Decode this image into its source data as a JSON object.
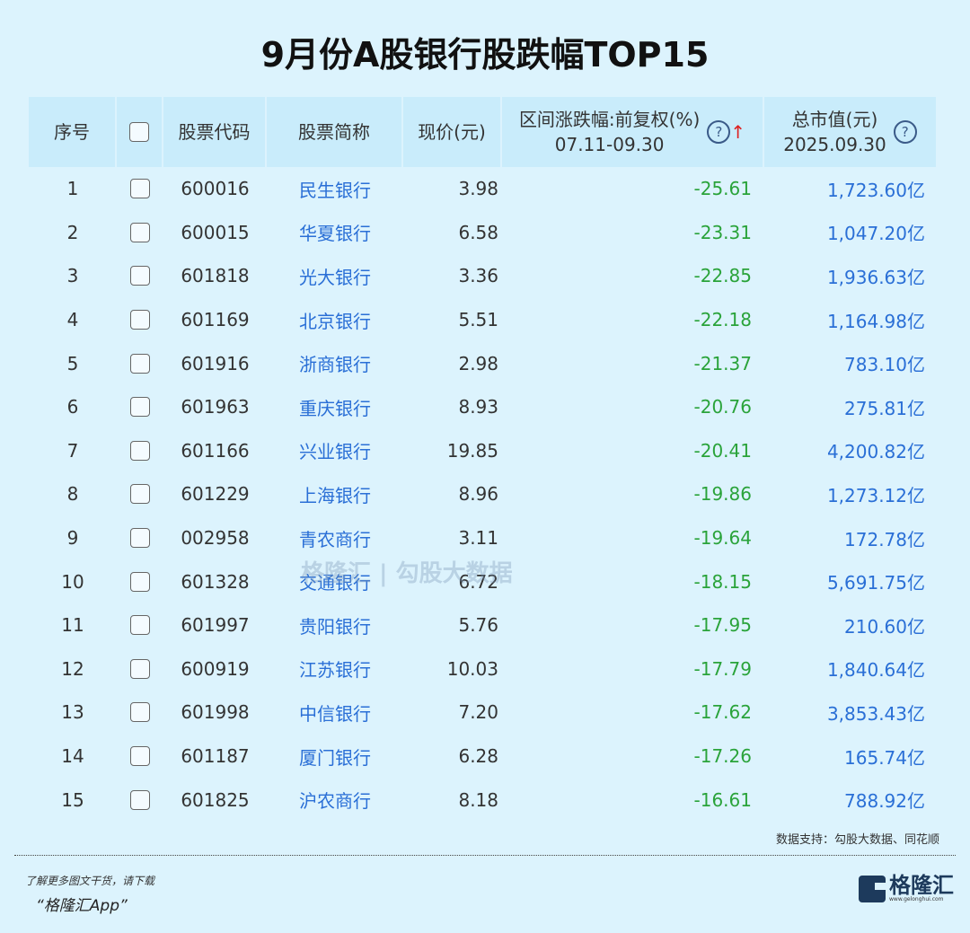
{
  "title": "9月份A股银行股跌幅TOP15",
  "headers": {
    "index": "序号",
    "code": "股票代码",
    "name": "股票简称",
    "price": "现价(元)",
    "change": "区间涨跌幅:前复权(%)",
    "change_period": "07.11-09.30",
    "cap": "总市值(元)",
    "cap_date": "2025.09.30",
    "help_icon": "?",
    "sort_icon": "↑"
  },
  "rows": [
    {
      "index": "1",
      "code": "600016",
      "name": "民生银行",
      "price": "3.98",
      "change": "-25.61",
      "cap": "1,723.60亿"
    },
    {
      "index": "2",
      "code": "600015",
      "name": "华夏银行",
      "price": "6.58",
      "change": "-23.31",
      "cap": "1,047.20亿"
    },
    {
      "index": "3",
      "code": "601818",
      "name": "光大银行",
      "price": "3.36",
      "change": "-22.85",
      "cap": "1,936.63亿"
    },
    {
      "index": "4",
      "code": "601169",
      "name": "北京银行",
      "price": "5.51",
      "change": "-22.18",
      "cap": "1,164.98亿"
    },
    {
      "index": "5",
      "code": "601916",
      "name": "浙商银行",
      "price": "2.98",
      "change": "-21.37",
      "cap": "783.10亿"
    },
    {
      "index": "6",
      "code": "601963",
      "name": "重庆银行",
      "price": "8.93",
      "change": "-20.76",
      "cap": "275.81亿"
    },
    {
      "index": "7",
      "code": "601166",
      "name": "兴业银行",
      "price": "19.85",
      "change": "-20.41",
      "cap": "4,200.82亿"
    },
    {
      "index": "8",
      "code": "601229",
      "name": "上海银行",
      "price": "8.96",
      "change": "-19.86",
      "cap": "1,273.12亿"
    },
    {
      "index": "9",
      "code": "002958",
      "name": "青农商行",
      "price": "3.11",
      "change": "-19.64",
      "cap": "172.78亿"
    },
    {
      "index": "10",
      "code": "601328",
      "name": "交通银行",
      "price": "6.72",
      "change": "-18.15",
      "cap": "5,691.75亿"
    },
    {
      "index": "11",
      "code": "601997",
      "name": "贵阳银行",
      "price": "5.76",
      "change": "-17.95",
      "cap": "210.60亿"
    },
    {
      "index": "12",
      "code": "600919",
      "name": "江苏银行",
      "price": "10.03",
      "change": "-17.79",
      "cap": "1,840.64亿"
    },
    {
      "index": "13",
      "code": "601998",
      "name": "中信银行",
      "price": "7.20",
      "change": "-17.62",
      "cap": "3,853.43亿"
    },
    {
      "index": "14",
      "code": "601187",
      "name": "厦门银行",
      "price": "6.28",
      "change": "-17.26",
      "cap": "165.74亿"
    },
    {
      "index": "15",
      "code": "601825",
      "name": "沪农商行",
      "price": "8.18",
      "change": "-16.61",
      "cap": "788.92亿"
    }
  ],
  "watermark": "格隆汇 | 勾股大数据",
  "source": "数据支持：勾股大数据、同花顺",
  "promo_line1": "了解更多图文干货，请下载",
  "promo_line2": "“格隆汇App”",
  "logo_text": "格隆汇",
  "logo_url": "www.gelonghui.com",
  "colors": {
    "background": "#dcf3fd",
    "header": "#c9ecfb",
    "negative": "#2aa33a",
    "link": "#2a6fd6",
    "sort_arrow": "#dd2222"
  }
}
